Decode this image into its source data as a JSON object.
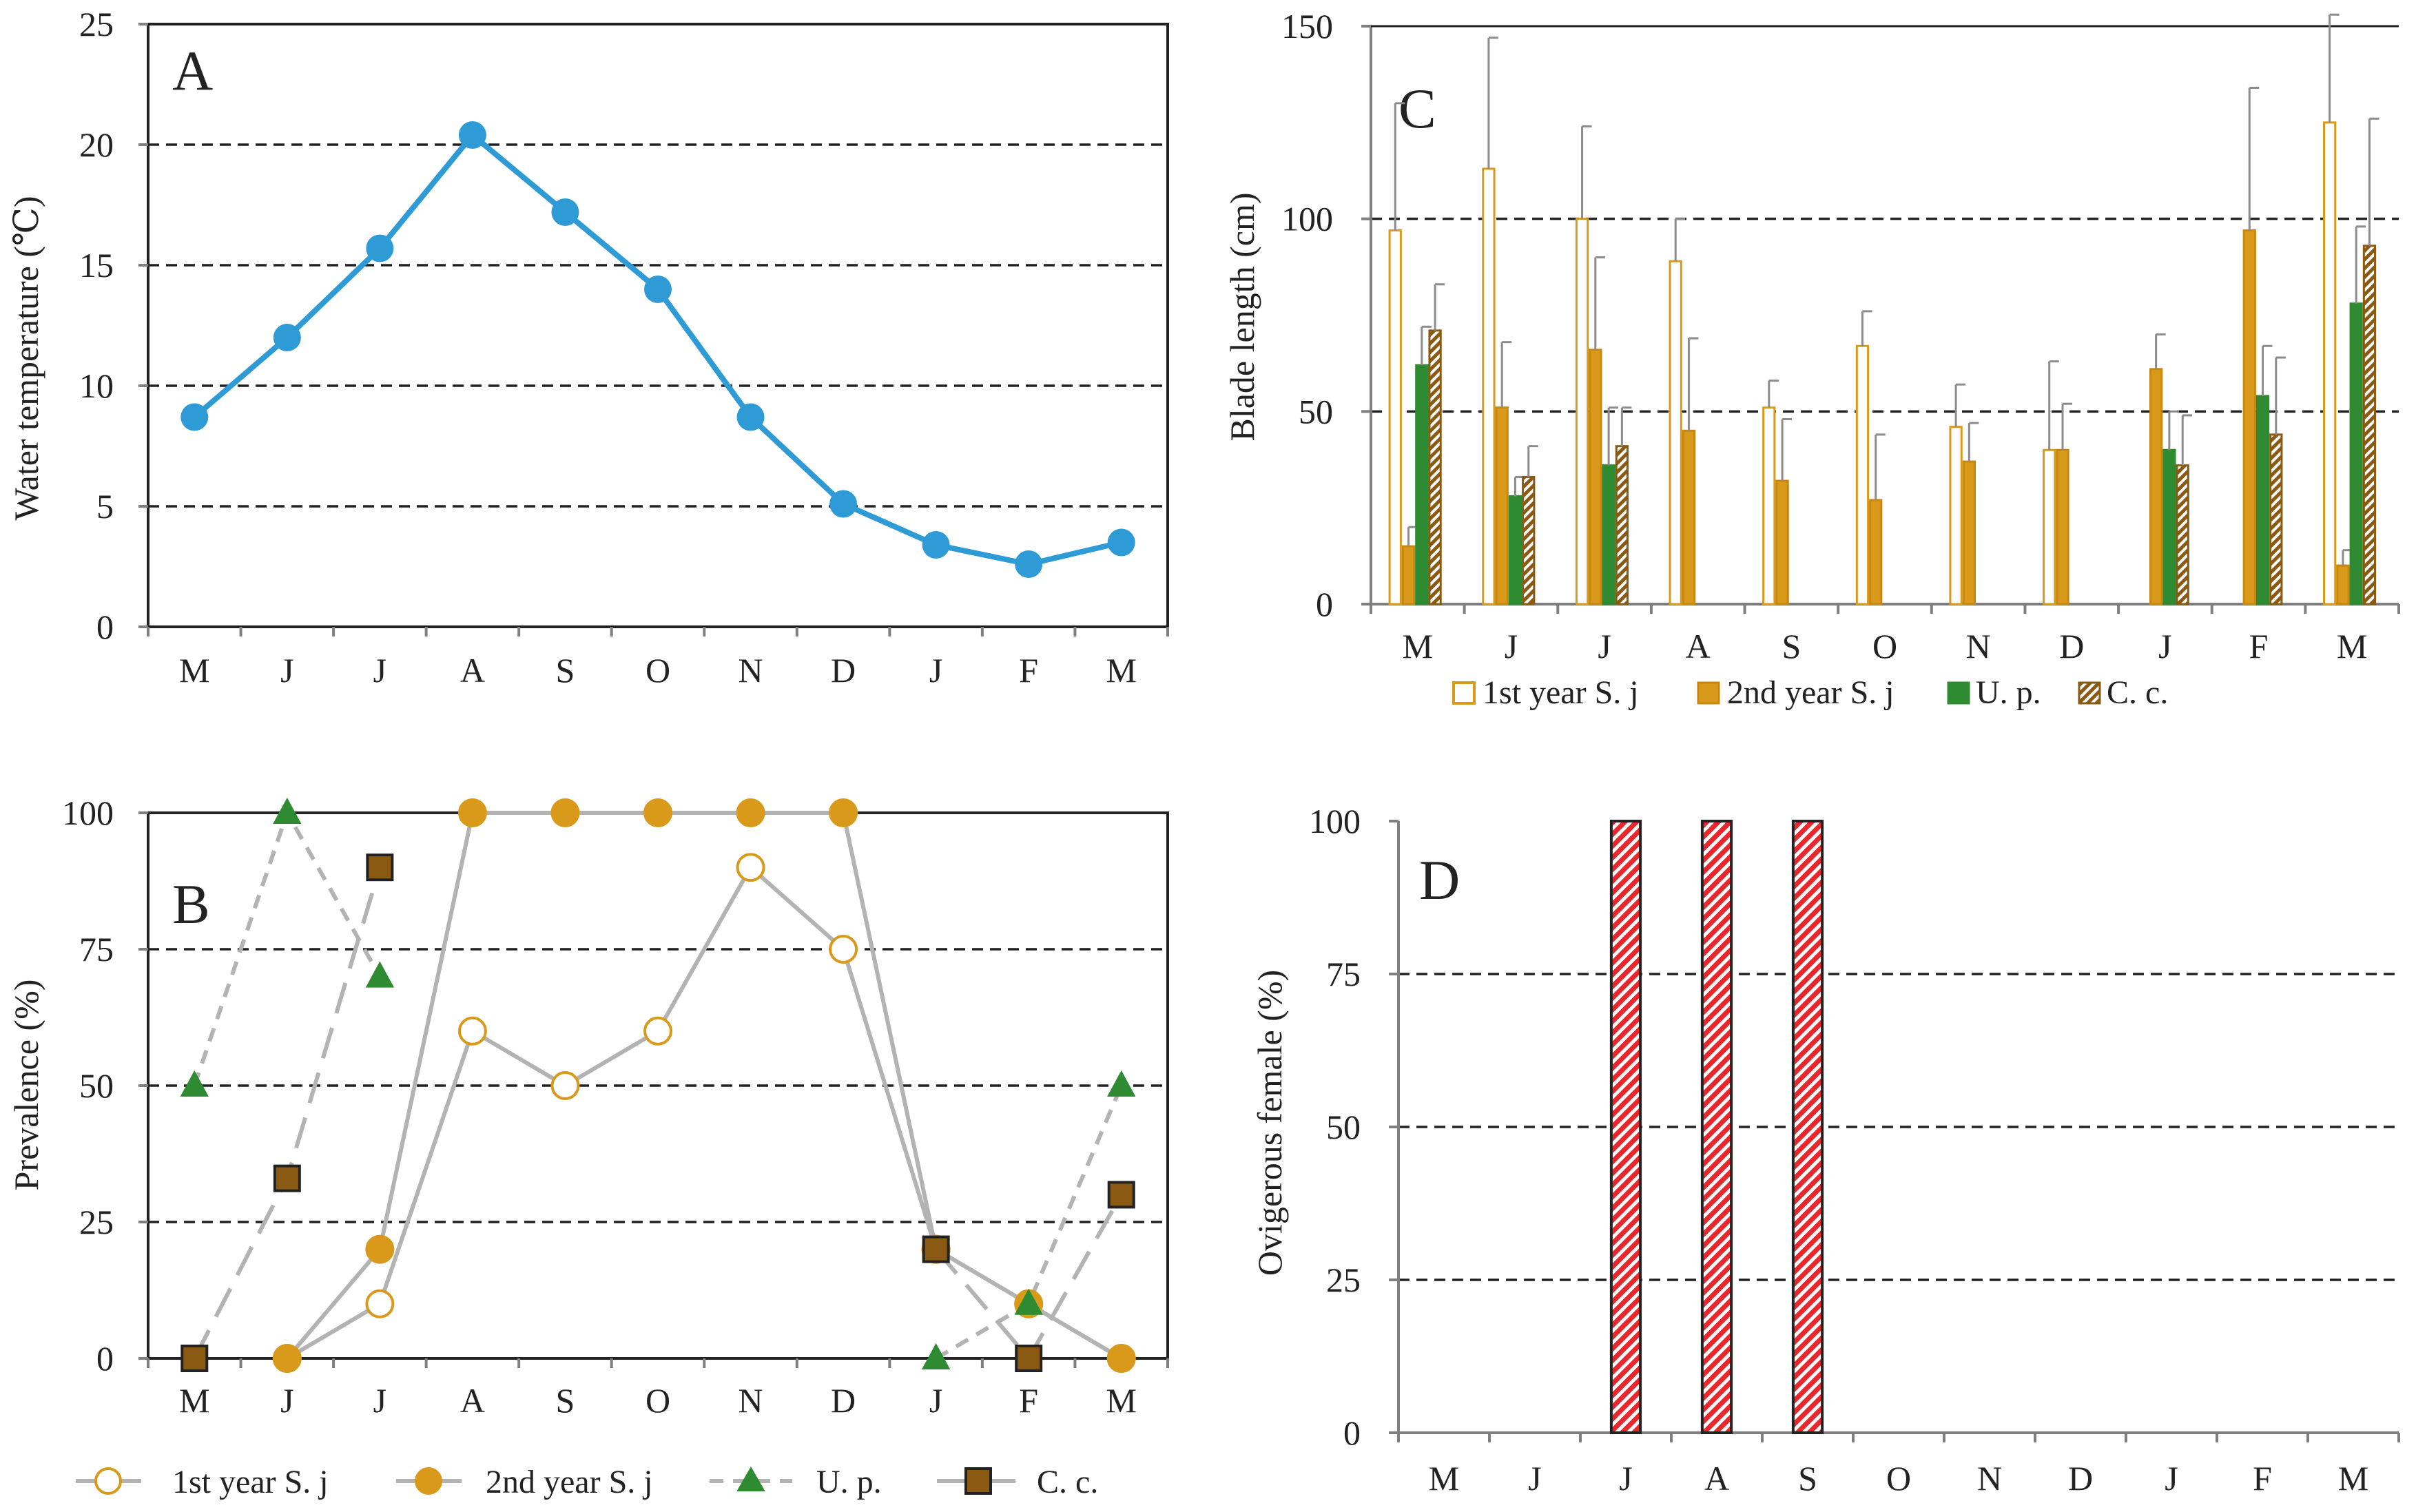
{
  "figure": {
    "colors": {
      "temp": "#2e9bd6",
      "gray_line": "#b3b3b3",
      "orange": "#d99a1c",
      "orange_edge": "#c9870f",
      "green": "#2e8b32",
      "brown": "#8a5a12",
      "ovig_red": "#e8262c",
      "grid": "#222222",
      "axis": "#7f7f7f",
      "errbar": "#8c8c8c"
    },
    "months": [
      "M",
      "J",
      "J",
      "A",
      "S",
      "O",
      "N",
      "D",
      "J",
      "F",
      "M"
    ]
  },
  "chart_data": [
    {
      "id": "A",
      "type": "line",
      "panel_label": "A",
      "title": "",
      "xlabel": "",
      "ylabel": "Water temperature (℃)",
      "ylim": [
        0,
        25
      ],
      "yticks": [
        0,
        5,
        10,
        15,
        20,
        25
      ],
      "ytick_labels": [
        "0",
        "5",
        "10",
        "15",
        "20",
        "25"
      ],
      "grid_dashed": [
        5,
        10,
        15,
        20
      ],
      "categories": [
        "M",
        "J",
        "J",
        "A",
        "S",
        "O",
        "N",
        "D",
        "J",
        "F",
        "M"
      ],
      "series": [
        {
          "name": "Water temperature",
          "values": [
            8.7,
            12.0,
            15.7,
            20.4,
            17.2,
            14.0,
            8.7,
            5.1,
            3.4,
            2.6,
            3.5
          ]
        }
      ]
    },
    {
      "id": "B",
      "type": "line",
      "panel_label": "B",
      "title": "",
      "xlabel": "",
      "ylabel": "Prevalence (%)",
      "ylim": [
        0,
        100
      ],
      "yticks": [
        0,
        25,
        50,
        75,
        100
      ],
      "ytick_labels": [
        "0",
        "25",
        "50",
        "75",
        "100"
      ],
      "grid_dashed": [
        25,
        50,
        75
      ],
      "categories": [
        "M",
        "J",
        "J",
        "A",
        "S",
        "O",
        "N",
        "D",
        "J",
        "F",
        "M"
      ],
      "legend_position": "bottom",
      "series": [
        {
          "name": "1st year S. j",
          "marker": "circle-open",
          "line": "solid",
          "values": [
            null,
            0,
            10,
            60,
            50,
            60,
            90,
            75,
            20,
            10,
            0
          ]
        },
        {
          "name": "2nd year S. j",
          "marker": "circle-filled",
          "line": "solid",
          "values": [
            null,
            0,
            20,
            100,
            100,
            100,
            100,
            100,
            20,
            10,
            0
          ]
        },
        {
          "name": "U. p.",
          "marker": "triangle",
          "line": "dashed",
          "values": [
            50,
            100,
            70,
            null,
            null,
            null,
            null,
            null,
            0,
            10,
            50
          ]
        },
        {
          "name": "C. c.",
          "marker": "square",
          "line": "longdash",
          "values": [
            0,
            33,
            90,
            null,
            null,
            null,
            null,
            null,
            20,
            0,
            30
          ]
        }
      ]
    },
    {
      "id": "C",
      "type": "bar",
      "panel_label": "C",
      "title": "",
      "xlabel": "",
      "ylabel": "Blade length (cm)",
      "ylim": [
        0,
        150
      ],
      "yticks": [
        0,
        50,
        100,
        150
      ],
      "ytick_labels": [
        "0",
        "50",
        "100",
        "150"
      ],
      "grid_dashed": [
        50,
        100
      ],
      "categories": [
        "M",
        "J",
        "J",
        "A",
        "S",
        "O",
        "N",
        "D",
        "J",
        "F",
        "M"
      ],
      "legend_position": "bottom",
      "series": [
        {
          "name": "1st year S. j",
          "style": "open",
          "values": [
            97,
            113,
            100,
            89,
            51,
            67,
            46,
            40,
            null,
            null,
            125
          ],
          "errors": [
            33,
            34,
            24,
            11,
            7,
            9,
            11,
            23,
            null,
            null,
            28
          ]
        },
        {
          "name": "2nd year S. j",
          "style": "filled-orange",
          "values": [
            15,
            51,
            66,
            45,
            32,
            27,
            37,
            40,
            61,
            97,
            10
          ],
          "errors": [
            5,
            17,
            24,
            24,
            16,
            17,
            10,
            12,
            9,
            37,
            4
          ]
        },
        {
          "name": "U. p.",
          "style": "filled-green",
          "values": [
            62,
            28,
            36,
            null,
            null,
            null,
            null,
            null,
            40,
            54,
            78
          ],
          "errors": [
            10,
            5,
            15,
            null,
            null,
            null,
            null,
            null,
            10,
            13,
            20
          ]
        },
        {
          "name": "C. c.",
          "style": "hatched-brown",
          "values": [
            71,
            33,
            41,
            null,
            null,
            null,
            null,
            null,
            36,
            44,
            93
          ],
          "errors": [
            12,
            8,
            10,
            null,
            null,
            null,
            null,
            null,
            13,
            20,
            33
          ]
        }
      ]
    },
    {
      "id": "D",
      "type": "bar",
      "panel_label": "D",
      "title": "",
      "xlabel": "",
      "ylabel": "Ovigerous female (%)",
      "ylim": [
        0,
        100
      ],
      "yticks": [
        0,
        25,
        50,
        75,
        100
      ],
      "ytick_labels": [
        "0",
        "25",
        "50",
        "75",
        "100"
      ],
      "grid_dashed": [
        25,
        50,
        75
      ],
      "categories": [
        "M",
        "J",
        "J",
        "A",
        "S",
        "O",
        "N",
        "D",
        "J",
        "F",
        "M"
      ],
      "series": [
        {
          "name": "Ovigerous female",
          "values": [
            0,
            0,
            100,
            100,
            100,
            0,
            0,
            0,
            0,
            0,
            0
          ]
        }
      ]
    }
  ]
}
